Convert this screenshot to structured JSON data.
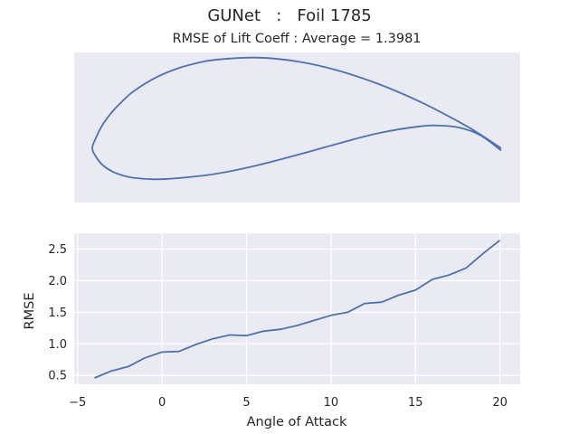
{
  "figure": {
    "suptitle": "GUNet   :   Foil 1785",
    "subtitle": "RMSE of Lift Coeff : Average = 1.3981"
  },
  "colors": {
    "axes_background": "#eaeaf2",
    "grid": "#ffffff",
    "line": "#4c72b0",
    "text": "#262626"
  },
  "chart_data": [
    {
      "type": "line",
      "panel": "airfoil-profile",
      "axes_visible": false,
      "note_shape": "closed airfoil contour, trailing edge at right, leading edge at left",
      "upper_surface": {
        "x": [
          1.0,
          0.95,
          0.9,
          0.8,
          0.7,
          0.6,
          0.5,
          0.4,
          0.3,
          0.25,
          0.2,
          0.15,
          0.1,
          0.075,
          0.05,
          0.025,
          0.01,
          0.0
        ],
        "y": [
          0.0,
          0.018,
          0.034,
          0.062,
          0.085,
          0.103,
          0.115,
          0.12,
          0.117,
          0.112,
          0.104,
          0.092,
          0.075,
          0.063,
          0.049,
          0.031,
          0.015,
          0.0
        ]
      },
      "lower_surface": {
        "x": [
          0.0,
          0.01,
          0.025,
          0.05,
          0.075,
          0.1,
          0.15,
          0.2,
          0.3,
          0.4,
          0.5,
          0.6,
          0.7,
          0.8,
          0.85,
          0.9,
          0.95,
          1.0
        ],
        "y": [
          0.0,
          -0.012,
          -0.022,
          -0.031,
          -0.036,
          -0.039,
          -0.041,
          -0.04,
          -0.034,
          -0.023,
          -0.009,
          0.006,
          0.02,
          0.029,
          0.03,
          0.027,
          0.017,
          -0.003
        ]
      }
    },
    {
      "type": "line",
      "panel": "rmse-vs-aoa",
      "xlabel": "Angle of Attack",
      "ylabel": "RMSE",
      "xlim": [
        -5.2,
        21.2
      ],
      "ylim": [
        0.36,
        2.75
      ],
      "xticks": [
        -5,
        0,
        5,
        10,
        15,
        20
      ],
      "yticks": [
        0.5,
        1.0,
        1.5,
        2.0,
        2.5
      ],
      "xtick_labels": [
        "−5",
        "0",
        "5",
        "10",
        "15",
        "20"
      ],
      "ytick_labels": [
        "0.5",
        "1.0",
        "1.5",
        "2.0",
        "2.5"
      ],
      "grid": true,
      "x": [
        -4,
        -3,
        -2,
        -1,
        0,
        1,
        2,
        3,
        4,
        5,
        6,
        7,
        8,
        9,
        10,
        11,
        12,
        13,
        14,
        15,
        16,
        17,
        18,
        19,
        20
      ],
      "y": [
        0.46,
        0.57,
        0.64,
        0.78,
        0.87,
        0.88,
        0.99,
        1.08,
        1.14,
        1.13,
        1.2,
        1.23,
        1.29,
        1.37,
        1.45,
        1.5,
        1.64,
        1.66,
        1.77,
        1.85,
        2.02,
        2.09,
        2.2,
        2.43,
        2.64
      ]
    }
  ]
}
